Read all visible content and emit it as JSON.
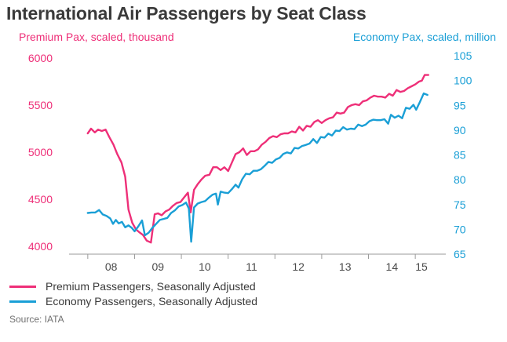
{
  "chart_data": {
    "type": "line",
    "title": "International Air Passengers by Seat Class",
    "ylabel_left": "Premium Pax, scaled, thousand",
    "ylabel_right": "Economy Pax, scaled, million",
    "ylim_left": [
      3950,
      6050
    ],
    "ylim_right": [
      65.5,
      105
    ],
    "yticks_left": [
      "4000",
      "4500",
      "5000",
      "5500",
      "6000"
    ],
    "yticks_right": [
      "65",
      "70",
      "75",
      "80",
      "85",
      "90",
      "95",
      "100",
      "105"
    ],
    "xlim": [
      2007.6,
      2015.35
    ],
    "xticks": [
      {
        "label": "08",
        "value": 2008.5
      },
      {
        "label": "09",
        "value": 2009.5
      },
      {
        "label": "10",
        "value": 2010.5
      },
      {
        "label": "11",
        "value": 2011.5
      },
      {
        "label": "12",
        "value": 2012.5
      },
      {
        "label": "13",
        "value": 2013.5
      },
      {
        "label": "14",
        "value": 2014.5
      },
      {
        "label": "15",
        "value": 2015.5
      }
    ],
    "series": [
      {
        "name": "Premium Passengers, Seasonally Adjusted",
        "axis": "left",
        "color": "#ee2f78",
        "points": [
          [
            2008.0,
            5200
          ],
          [
            2008.07,
            5250
          ],
          [
            2008.15,
            5210
          ],
          [
            2008.22,
            5240
          ],
          [
            2008.3,
            5225
          ],
          [
            2008.38,
            5240
          ],
          [
            2008.46,
            5160
          ],
          [
            2008.55,
            5080
          ],
          [
            2008.63,
            4980
          ],
          [
            2008.72,
            4890
          ],
          [
            2008.8,
            4740
          ],
          [
            2008.87,
            4390
          ],
          [
            2008.95,
            4250
          ],
          [
            2009.03,
            4180
          ],
          [
            2009.1,
            4150
          ],
          [
            2009.18,
            4120
          ],
          [
            2009.26,
            4060
          ],
          [
            2009.35,
            4040
          ],
          [
            2009.43,
            4340
          ],
          [
            2009.5,
            4350
          ],
          [
            2009.58,
            4330
          ],
          [
            2009.66,
            4370
          ],
          [
            2009.74,
            4390
          ],
          [
            2009.82,
            4430
          ],
          [
            2009.9,
            4460
          ],
          [
            2009.98,
            4470
          ],
          [
            2010.06,
            4520
          ],
          [
            2010.14,
            4570
          ],
          [
            2010.2,
            4360
          ],
          [
            2010.27,
            4600
          ],
          [
            2010.35,
            4660
          ],
          [
            2010.43,
            4710
          ],
          [
            2010.51,
            4750
          ],
          [
            2010.6,
            4760
          ],
          [
            2010.68,
            4840
          ],
          [
            2010.76,
            4840
          ],
          [
            2010.84,
            4810
          ],
          [
            2010.92,
            4840
          ],
          [
            2011.0,
            4800
          ],
          [
            2011.08,
            4890
          ],
          [
            2011.16,
            4980
          ],
          [
            2011.24,
            5000
          ],
          [
            2011.32,
            5040
          ],
          [
            2011.4,
            4970
          ],
          [
            2011.48,
            5010
          ],
          [
            2011.56,
            5010
          ],
          [
            2011.64,
            5030
          ],
          [
            2011.72,
            5080
          ],
          [
            2011.8,
            5110
          ],
          [
            2011.88,
            5150
          ],
          [
            2011.96,
            5170
          ],
          [
            2012.04,
            5160
          ],
          [
            2012.12,
            5190
          ],
          [
            2012.2,
            5200
          ],
          [
            2012.28,
            5200
          ],
          [
            2012.36,
            5220
          ],
          [
            2012.44,
            5210
          ],
          [
            2012.52,
            5270
          ],
          [
            2012.6,
            5230
          ],
          [
            2012.68,
            5280
          ],
          [
            2012.76,
            5270
          ],
          [
            2012.84,
            5320
          ],
          [
            2012.92,
            5340
          ],
          [
            2013.0,
            5310
          ],
          [
            2013.08,
            5340
          ],
          [
            2013.16,
            5360
          ],
          [
            2013.24,
            5370
          ],
          [
            2013.32,
            5420
          ],
          [
            2013.4,
            5410
          ],
          [
            2013.48,
            5420
          ],
          [
            2013.56,
            5480
          ],
          [
            2013.64,
            5500
          ],
          [
            2013.72,
            5510
          ],
          [
            2013.8,
            5500
          ],
          [
            2013.88,
            5540
          ],
          [
            2013.96,
            5550
          ],
          [
            2014.04,
            5580
          ],
          [
            2014.12,
            5600
          ],
          [
            2014.2,
            5590
          ],
          [
            2014.28,
            5590
          ],
          [
            2014.36,
            5580
          ],
          [
            2014.44,
            5620
          ],
          [
            2014.52,
            5600
          ],
          [
            2014.6,
            5660
          ],
          [
            2014.68,
            5640
          ],
          [
            2014.76,
            5650
          ],
          [
            2014.84,
            5680
          ],
          [
            2014.92,
            5700
          ],
          [
            2015.0,
            5720
          ],
          [
            2015.08,
            5750
          ],
          [
            2015.14,
            5760
          ],
          [
            2015.2,
            5820
          ],
          [
            2015.28,
            5820
          ]
        ]
      },
      {
        "name": "Economy Passengers, Seasonally Adjusted",
        "axis": "right",
        "color": "#1a9fd6",
        "points": [
          [
            2008.0,
            73.3
          ],
          [
            2008.08,
            73.4
          ],
          [
            2008.16,
            73.4
          ],
          [
            2008.24,
            73.9
          ],
          [
            2008.32,
            73.0
          ],
          [
            2008.4,
            72.7
          ],
          [
            2008.48,
            72.2
          ],
          [
            2008.54,
            71.1
          ],
          [
            2008.6,
            71.9
          ],
          [
            2008.66,
            71.2
          ],
          [
            2008.73,
            71.5
          ],
          [
            2008.8,
            70.4
          ],
          [
            2008.87,
            70.8
          ],
          [
            2008.94,
            70.3
          ],
          [
            2009.0,
            69.6
          ],
          [
            2009.08,
            70.6
          ],
          [
            2009.16,
            71.8
          ],
          [
            2009.22,
            68.8
          ],
          [
            2009.3,
            69.3
          ],
          [
            2009.38,
            70.3
          ],
          [
            2009.46,
            71.1
          ],
          [
            2009.54,
            71.9
          ],
          [
            2009.62,
            72.1
          ],
          [
            2009.7,
            72.3
          ],
          [
            2009.78,
            73.3
          ],
          [
            2009.86,
            73.8
          ],
          [
            2009.94,
            74.6
          ],
          [
            2010.02,
            74.9
          ],
          [
            2010.1,
            75.4
          ],
          [
            2010.16,
            74.2
          ],
          [
            2010.21,
            67.5
          ],
          [
            2010.27,
            74.4
          ],
          [
            2010.35,
            75.2
          ],
          [
            2010.43,
            75.5
          ],
          [
            2010.51,
            75.7
          ],
          [
            2010.59,
            76.4
          ],
          [
            2010.67,
            77.0
          ],
          [
            2010.74,
            77.2
          ],
          [
            2010.78,
            75.0
          ],
          [
            2010.84,
            77.6
          ],
          [
            2010.92,
            77.4
          ],
          [
            2011.0,
            77.3
          ],
          [
            2011.08,
            78.1
          ],
          [
            2011.16,
            79.0
          ],
          [
            2011.22,
            78.4
          ],
          [
            2011.3,
            80.1
          ],
          [
            2011.38,
            81.2
          ],
          [
            2011.46,
            81.1
          ],
          [
            2011.54,
            81.8
          ],
          [
            2011.62,
            81.8
          ],
          [
            2011.7,
            82.1
          ],
          [
            2011.78,
            82.8
          ],
          [
            2011.86,
            83.6
          ],
          [
            2011.94,
            83.4
          ],
          [
            2012.02,
            84.1
          ],
          [
            2012.1,
            84.4
          ],
          [
            2012.18,
            85.2
          ],
          [
            2012.26,
            85.5
          ],
          [
            2012.34,
            85.3
          ],
          [
            2012.42,
            86.4
          ],
          [
            2012.5,
            86.3
          ],
          [
            2012.58,
            86.8
          ],
          [
            2012.66,
            87.0
          ],
          [
            2012.74,
            87.3
          ],
          [
            2012.82,
            88.2
          ],
          [
            2012.9,
            87.4
          ],
          [
            2012.98,
            88.6
          ],
          [
            2013.06,
            88.5
          ],
          [
            2013.14,
            89.3
          ],
          [
            2013.22,
            88.9
          ],
          [
            2013.3,
            89.9
          ],
          [
            2013.38,
            89.8
          ],
          [
            2013.46,
            90.6
          ],
          [
            2013.54,
            90.1
          ],
          [
            2013.62,
            90.3
          ],
          [
            2013.7,
            90.2
          ],
          [
            2013.78,
            91.1
          ],
          [
            2013.86,
            90.8
          ],
          [
            2013.94,
            91.1
          ],
          [
            2014.02,
            91.8
          ],
          [
            2014.1,
            92.1
          ],
          [
            2014.18,
            92.0
          ],
          [
            2014.26,
            92.0
          ],
          [
            2014.34,
            92.2
          ],
          [
            2014.42,
            91.3
          ],
          [
            2014.48,
            93.1
          ],
          [
            2014.56,
            92.5
          ],
          [
            2014.64,
            92.9
          ],
          [
            2014.72,
            92.4
          ],
          [
            2014.8,
            94.5
          ],
          [
            2014.88,
            94.3
          ],
          [
            2014.96,
            95.1
          ],
          [
            2015.02,
            94.1
          ],
          [
            2015.1,
            95.7
          ],
          [
            2015.18,
            97.4
          ],
          [
            2015.26,
            97.1
          ]
        ]
      }
    ],
    "legend": [
      {
        "label": "Premium Passengers, Seasonally Adjusted",
        "color": "#ee2f78"
      },
      {
        "label": "Economy Passengers, Seasonally Adjusted",
        "color": "#1a9fd6"
      }
    ],
    "source": "Source: IATA"
  }
}
